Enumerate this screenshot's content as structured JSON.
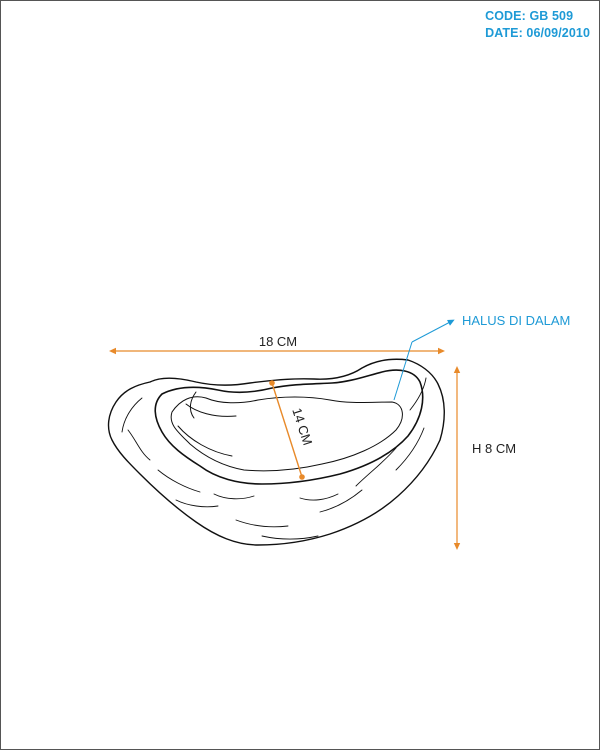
{
  "header": {
    "code": "CODE: GB 509",
    "date": "DATE: 06/09/2010"
  },
  "dimensions": {
    "width": "18 CM",
    "depth": "14 CM",
    "height": "H 8 CM"
  },
  "callout": {
    "text": "HALUS DI DALAM"
  },
  "colors": {
    "accent": "#1e9ad6",
    "dimension_arrow": "#e88a2a",
    "outline": "#111111"
  }
}
